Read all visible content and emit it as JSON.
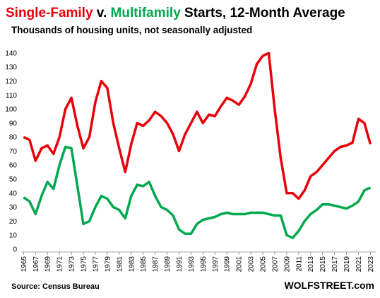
{
  "chart_data": {
    "type": "line",
    "title": [
      {
        "text": "Single-Family",
        "color": "#e8000b"
      },
      {
        "text": " v. ",
        "color": "#000000"
      },
      {
        "text": "Multifamily",
        "color": "#00a84f"
      },
      {
        "text": " Starts, 12-Month Average",
        "color": "#000000"
      }
    ],
    "subtitle": "Thousands of housing units, not seasonally adjusted",
    "source": "Source: Census Bureau",
    "brand": "WOLFSTREET.com",
    "x": [
      1965,
      1966,
      1967,
      1968,
      1969,
      1970,
      1971,
      1972,
      1973,
      1974,
      1975,
      1976,
      1977,
      1978,
      1979,
      1980,
      1981,
      1982,
      1983,
      1984,
      1985,
      1986,
      1987,
      1988,
      1989,
      1990,
      1991,
      1992,
      1993,
      1994,
      1995,
      1996,
      1997,
      1998,
      1999,
      2000,
      2001,
      2002,
      2003,
      2004,
      2005,
      2006,
      2007,
      2008,
      2009,
      2010,
      2011,
      2012,
      2013,
      2014,
      2015,
      2016,
      2017,
      2018,
      2019,
      2020,
      2021,
      2022,
      2023
    ],
    "series": [
      {
        "name": "Single-Family",
        "color": "#e8000b",
        "values": [
          80,
          78,
          63,
          72,
          74,
          68,
          80,
          100,
          108,
          88,
          72,
          80,
          105,
          120,
          115,
          90,
          72,
          55,
          75,
          90,
          88,
          92,
          98,
          95,
          90,
          82,
          70,
          82,
          90,
          98,
          90,
          96,
          95,
          102,
          108,
          106,
          103,
          109,
          118,
          132,
          138,
          140,
          100,
          65,
          40,
          40,
          36,
          42,
          52,
          55,
          60,
          65,
          70,
          73,
          74,
          76,
          93,
          90,
          75
        ]
      },
      {
        "name": "Multifamily",
        "color": "#00a84f",
        "values": [
          37,
          34,
          25,
          38,
          48,
          43,
          60,
          73,
          72,
          45,
          18,
          20,
          30,
          38,
          36,
          30,
          28,
          22,
          38,
          46,
          45,
          48,
          38,
          30,
          28,
          24,
          14,
          11,
          11,
          18,
          21,
          22,
          23,
          25,
          26,
          25,
          25,
          25,
          26,
          26,
          26,
          25,
          24,
          24,
          10,
          8,
          13,
          20,
          25,
          28,
          32,
          32,
          31,
          30,
          29,
          31,
          34,
          42,
          44
        ]
      }
    ],
    "xlim": [
      1964.6,
      2023.9
    ],
    "xticks": [
      1965,
      1967,
      1969,
      1971,
      1973,
      1975,
      1977,
      1979,
      1981,
      1983,
      1985,
      1987,
      1989,
      1991,
      1993,
      1995,
      1997,
      1999,
      2001,
      2003,
      2005,
      2007,
      2009,
      2011,
      2013,
      2015,
      2017,
      2019,
      2021,
      2023
    ],
    "ylim": [
      0,
      145
    ],
    "yticks": [
      0,
      10,
      20,
      30,
      40,
      50,
      60,
      70,
      80,
      90,
      100,
      110,
      120,
      130,
      140
    ],
    "grid": false
  }
}
